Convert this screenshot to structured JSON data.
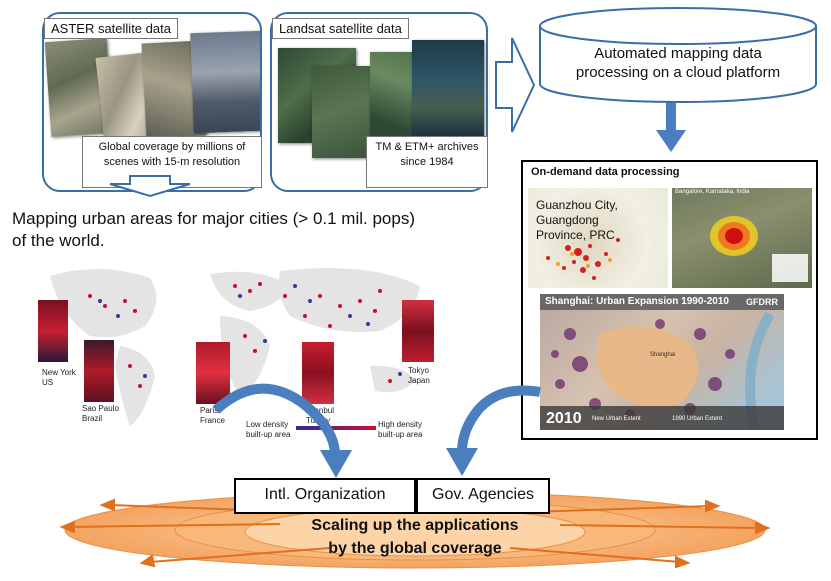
{
  "aster": {
    "title": "ASTER satellite data",
    "note": "Global coverage by millions of scenes with 15-m resolution"
  },
  "landsat": {
    "title": "Landsat satellite data",
    "note": "TM & ETM+ archives since 1984"
  },
  "cloud": {
    "label": "Automated mapping data processing on a cloud platform"
  },
  "ondemand": {
    "title": "On-demand data processing",
    "guangzhou_label": "Guanzhou City, Guangdong Province, PRC",
    "bangalore_label": "Bangalore, Karnataka, India",
    "shanghai_title": "Shanghai: Urban Expansion 1990-2010",
    "shanghai_logo": "GFDRR",
    "shanghai_city": "Shanghai",
    "year": "2010",
    "legend_new": "New Urban Extent",
    "legend_old": "1990 Urban Extent"
  },
  "mapping": {
    "heading_line1": "Mapping urban areas for major cities (> 0.1 mil. pops)",
    "heading_line2": "of the world.",
    "cities": [
      {
        "name": "New York",
        "country": "US"
      },
      {
        "name": "Sao Paulo",
        "country": "Brazil"
      },
      {
        "name": "Paris",
        "country": "France"
      },
      {
        "name": "Istanbul",
        "country": "Turkey"
      },
      {
        "name": "Tokyo",
        "country": "Japan"
      }
    ],
    "legend_low": "Low density built-up area",
    "legend_high": "High density built-up area"
  },
  "applications": {
    "org_label": "Intl. Organization",
    "gov_label": "Gov. Agencies",
    "scaling_line1": "Scaling up the applications",
    "scaling_line2": "by the global coverage"
  },
  "colors": {
    "panel_border": "#3b6ea5",
    "arrow_blue": "#4a7ebf",
    "ellipse_orange": "#f4a460",
    "arrow_orange": "#e07020"
  }
}
